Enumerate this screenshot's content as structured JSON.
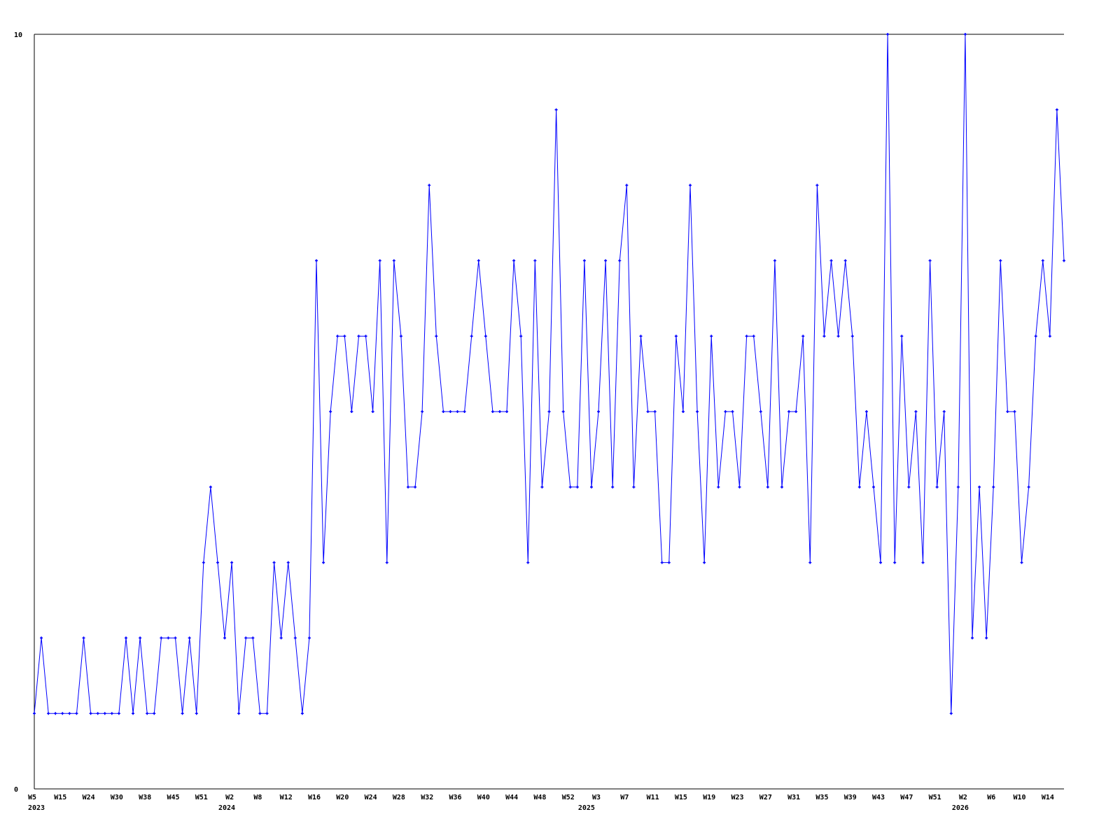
{
  "chart_data": {
    "type": "line",
    "title": "",
    "xlabel": "",
    "ylabel": "",
    "ylim": [
      0,
      10
    ],
    "y_ticks": [
      "0",
      "10"
    ],
    "grid": false,
    "line_color": "#0000ff",
    "axis_color": "#000000",
    "x_ticks": [
      {
        "index": 0,
        "label": "W5"
      },
      {
        "index": 4,
        "label": "W15"
      },
      {
        "index": 8,
        "label": "W24"
      },
      {
        "index": 12,
        "label": "W30"
      },
      {
        "index": 16,
        "label": "W38"
      },
      {
        "index": 20,
        "label": "W45"
      },
      {
        "index": 24,
        "label": "W51"
      },
      {
        "index": 28,
        "label": "W2"
      },
      {
        "index": 32,
        "label": "W8"
      },
      {
        "index": 36,
        "label": "W12"
      },
      {
        "index": 40,
        "label": "W16"
      },
      {
        "index": 44,
        "label": "W20"
      },
      {
        "index": 48,
        "label": "W24"
      },
      {
        "index": 52,
        "label": "W28"
      },
      {
        "index": 56,
        "label": "W32"
      },
      {
        "index": 60,
        "label": "W36"
      },
      {
        "index": 64,
        "label": "W40"
      },
      {
        "index": 68,
        "label": "W44"
      },
      {
        "index": 72,
        "label": "W48"
      },
      {
        "index": 76,
        "label": "W52"
      },
      {
        "index": 80,
        "label": "W3"
      },
      {
        "index": 84,
        "label": "W7"
      },
      {
        "index": 88,
        "label": "W11"
      },
      {
        "index": 92,
        "label": "W15"
      },
      {
        "index": 96,
        "label": "W19"
      },
      {
        "index": 100,
        "label": "W23"
      },
      {
        "index": 104,
        "label": "W27"
      },
      {
        "index": 108,
        "label": "W31"
      },
      {
        "index": 112,
        "label": "W35"
      },
      {
        "index": 116,
        "label": "W39"
      },
      {
        "index": 120,
        "label": "W43"
      },
      {
        "index": 124,
        "label": "W47"
      },
      {
        "index": 128,
        "label": "W51"
      },
      {
        "index": 132,
        "label": "W2"
      },
      {
        "index": 136,
        "label": "W6"
      },
      {
        "index": 140,
        "label": "W10"
      },
      {
        "index": 144,
        "label": "W14"
      }
    ],
    "year_labels": [
      {
        "index": 0,
        "label": "2023"
      },
      {
        "index": 27,
        "label": "2024"
      },
      {
        "index": 78,
        "label": "2025"
      },
      {
        "index": 131,
        "label": "2026"
      }
    ],
    "values": [
      1,
      2,
      1,
      1,
      1,
      1,
      1,
      2,
      1,
      1,
      1,
      1,
      1,
      2,
      1,
      2,
      1,
      1,
      2,
      2,
      2,
      1,
      2,
      1,
      3,
      4,
      3,
      2,
      3,
      1,
      2,
      2,
      1,
      1,
      3,
      2,
      3,
      2,
      1,
      2,
      7,
      3,
      5,
      6,
      6,
      5,
      6,
      6,
      5,
      7,
      3,
      7,
      6,
      4,
      4,
      5,
      8,
      6,
      5,
      5,
      5,
      5,
      6,
      7,
      6,
      5,
      5,
      5,
      7,
      6,
      3,
      7,
      4,
      5,
      9,
      5,
      4,
      4,
      7,
      4,
      5,
      7,
      4,
      7,
      8,
      4,
      6,
      5,
      5,
      3,
      3,
      6,
      5,
      8,
      5,
      3,
      6,
      4,
      5,
      5,
      4,
      6,
      6,
      5,
      4,
      7,
      4,
      5,
      5,
      6,
      3,
      8,
      6,
      7,
      6,
      7,
      6,
      4,
      5,
      4,
      3,
      10,
      3,
      6,
      4,
      5,
      3,
      7,
      4,
      5,
      1,
      4,
      10,
      2,
      4,
      2,
      4,
      7,
      5,
      5,
      3,
      4,
      6,
      7,
      6,
      9,
      7
    ]
  }
}
